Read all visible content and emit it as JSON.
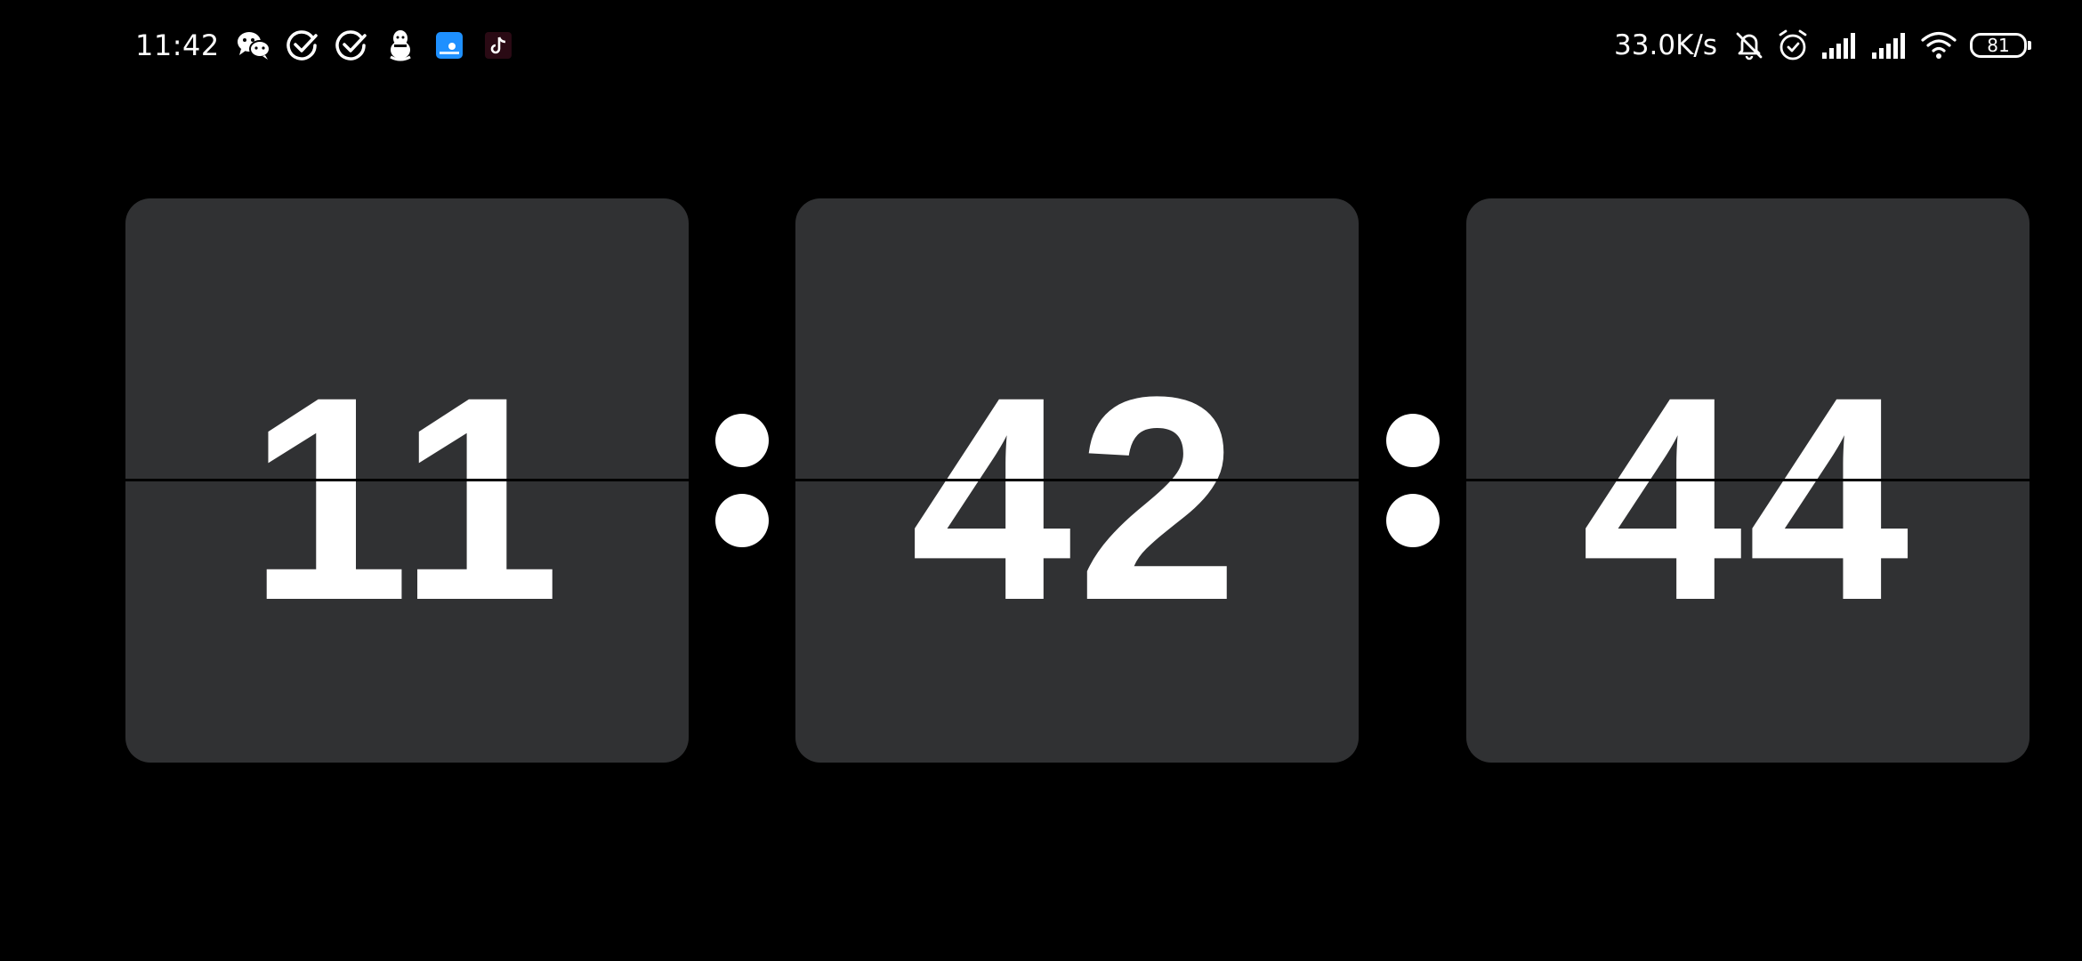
{
  "status_bar": {
    "time": "11:42",
    "notification_icons": [
      "wechat-icon",
      "check-circle-icon",
      "check-circle-icon",
      "qq-penguin-icon",
      "blue-app-icon",
      "tiktok-icon"
    ],
    "network_speed": "33.0K/s",
    "system_icons": [
      "bell-muted-icon",
      "alarm-icon",
      "signal-sim1-icon",
      "signal-sim2-icon",
      "wifi-icon"
    ],
    "battery_level": "81"
  },
  "clock": {
    "hours": "11",
    "minutes": "42",
    "seconds": "44"
  },
  "colors": {
    "background": "#000000",
    "card": "#303133",
    "digit": "#ffffff"
  }
}
